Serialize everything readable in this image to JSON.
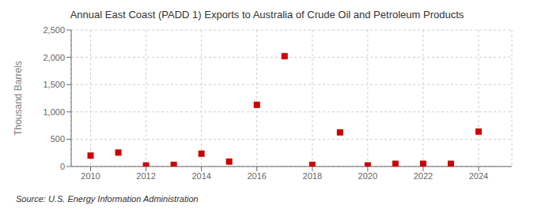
{
  "chart_data": {
    "type": "scatter",
    "title": "Annual East Coast (PADD 1) Exports to Australia of Crude Oil and Petroleum Products",
    "ylabel": "Thousand Barrels",
    "annotation": "Source: U.S. Energy Information Administration",
    "x": [
      2010,
      2011,
      2012,
      2013,
      2014,
      2015,
      2016,
      2017,
      2018,
      2019,
      2020,
      2021,
      2022,
      2023,
      2024
    ],
    "values": [
      200,
      255,
      20,
      30,
      235,
      90,
      1130,
      2020,
      30,
      625,
      20,
      50,
      50,
      50,
      640
    ],
    "color": "#cc0000",
    "marker": "square",
    "xlim": [
      2009.3,
      2025.2
    ],
    "xticks": [
      2010,
      2012,
      2014,
      2016,
      2018,
      2020,
      2022,
      2024
    ],
    "ylim": [
      0,
      2500
    ],
    "yticks": [
      0,
      500,
      {
        "value": 1000,
        "label": "1,000"
      },
      {
        "value": 1500,
        "label": "1,500"
      },
      {
        "value": 2000,
        "label": "2,000"
      },
      {
        "value": 2500,
        "label": "2,500"
      }
    ],
    "grid": true
  }
}
